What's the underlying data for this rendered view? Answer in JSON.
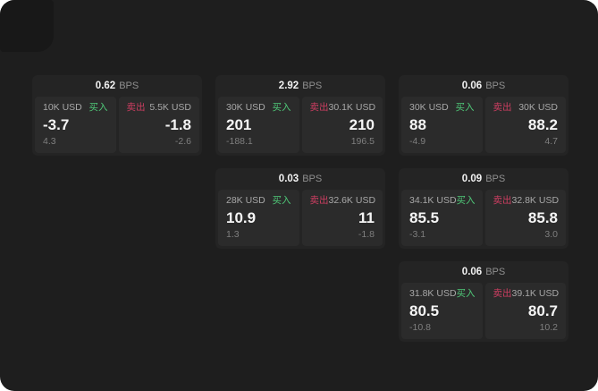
{
  "labels": {
    "bps_unit": "BPS",
    "buy": "买入",
    "sell": "卖出"
  },
  "colors": {
    "background": "#1e1e1e",
    "card": "#242424",
    "panel": "#2b2b2b",
    "buy_green": "#4fc878",
    "sell_red": "#cc3e61"
  },
  "cards": [
    {
      "bps": "0.62",
      "buy": {
        "amount": "10K USD",
        "price": "-3.7",
        "delta": "4.3"
      },
      "sell": {
        "amount": "5.5K USD",
        "price": "-1.8",
        "delta": "-2.6"
      }
    },
    {
      "bps": "2.92",
      "buy": {
        "amount": "30K USD",
        "price": "201",
        "delta": "-188.1"
      },
      "sell": {
        "amount": "30.1K USD",
        "price": "210",
        "delta": "196.5"
      }
    },
    {
      "bps": "0.06",
      "buy": {
        "amount": "30K USD",
        "price": "88",
        "delta": "-4.9"
      },
      "sell": {
        "amount": "30K USD",
        "price": "88.2",
        "delta": "4.7"
      }
    },
    {
      "bps": "0.03",
      "buy": {
        "amount": "28K USD",
        "price": "10.9",
        "delta": "1.3"
      },
      "sell": {
        "amount": "32.6K USD",
        "price": "11",
        "delta": "-1.8"
      }
    },
    {
      "bps": "0.09",
      "buy": {
        "amount": "34.1K USD",
        "price": "85.5",
        "delta": "-3.1"
      },
      "sell": {
        "amount": "32.8K USD",
        "price": "85.8",
        "delta": "3.0"
      }
    },
    {
      "bps": "0.06",
      "buy": {
        "amount": "31.8K USD",
        "price": "80.5",
        "delta": "-10.8"
      },
      "sell": {
        "amount": "39.1K USD",
        "price": "80.7",
        "delta": "10.2"
      }
    }
  ]
}
